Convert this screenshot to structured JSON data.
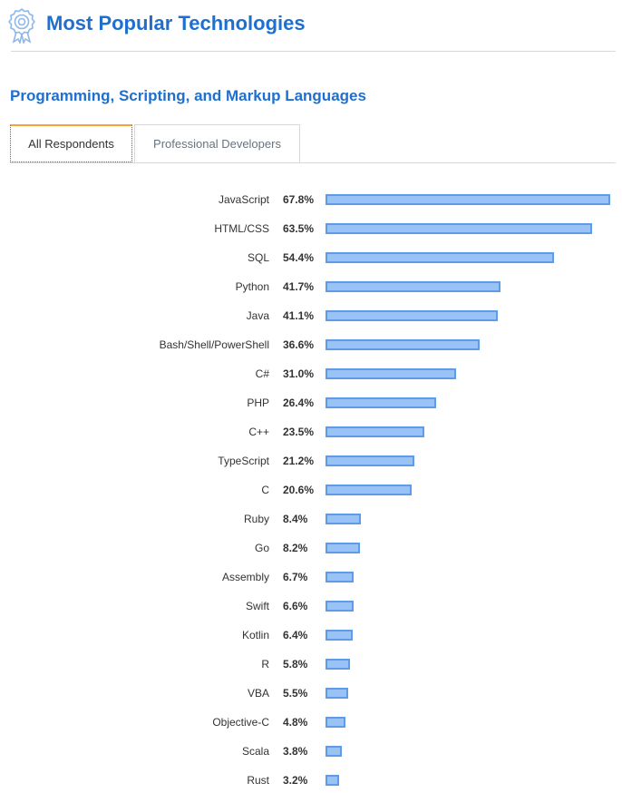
{
  "header": {
    "title": "Most Popular Technologies",
    "icon": "award-ribbon-icon",
    "title_color": "#1f6fcf"
  },
  "section": {
    "title": "Programming, Scripting, and Markup Languages"
  },
  "tabs": [
    {
      "label": "All Respondents",
      "active": true
    },
    {
      "label": "Professional Developers",
      "active": false
    }
  ],
  "colors": {
    "accent": "#1f6fcf",
    "tab_highlight": "#f2a33a",
    "bar_fill": "#99c2f7",
    "bar_border": "#5e9ce8"
  },
  "chart_data": {
    "type": "bar",
    "orientation": "horizontal",
    "categories": [
      "JavaScript",
      "HTML/CSS",
      "SQL",
      "Python",
      "Java",
      "Bash/Shell/PowerShell",
      "C#",
      "PHP",
      "C++",
      "TypeScript",
      "C",
      "Ruby",
      "Go",
      "Assembly",
      "Swift",
      "Kotlin",
      "R",
      "VBA",
      "Objective-C",
      "Scala",
      "Rust"
    ],
    "values": [
      67.8,
      63.5,
      54.4,
      41.7,
      41.1,
      36.6,
      31.0,
      26.4,
      23.5,
      21.2,
      20.6,
      8.4,
      8.2,
      6.7,
      6.6,
      6.4,
      5.8,
      5.5,
      4.8,
      3.8,
      3.2
    ],
    "value_labels": [
      "67.8%",
      "63.5%",
      "54.4%",
      "41.7%",
      "41.1%",
      "36.6%",
      "31.0%",
      "26.4%",
      "23.5%",
      "21.2%",
      "20.6%",
      "8.4%",
      "8.2%",
      "6.7%",
      "6.6%",
      "6.4%",
      "5.8%",
      "5.5%",
      "4.8%",
      "3.8%",
      "3.2%"
    ],
    "value_unit": "%",
    "xlim": [
      0,
      67.8
    ],
    "grid": false,
    "legend": "none"
  }
}
